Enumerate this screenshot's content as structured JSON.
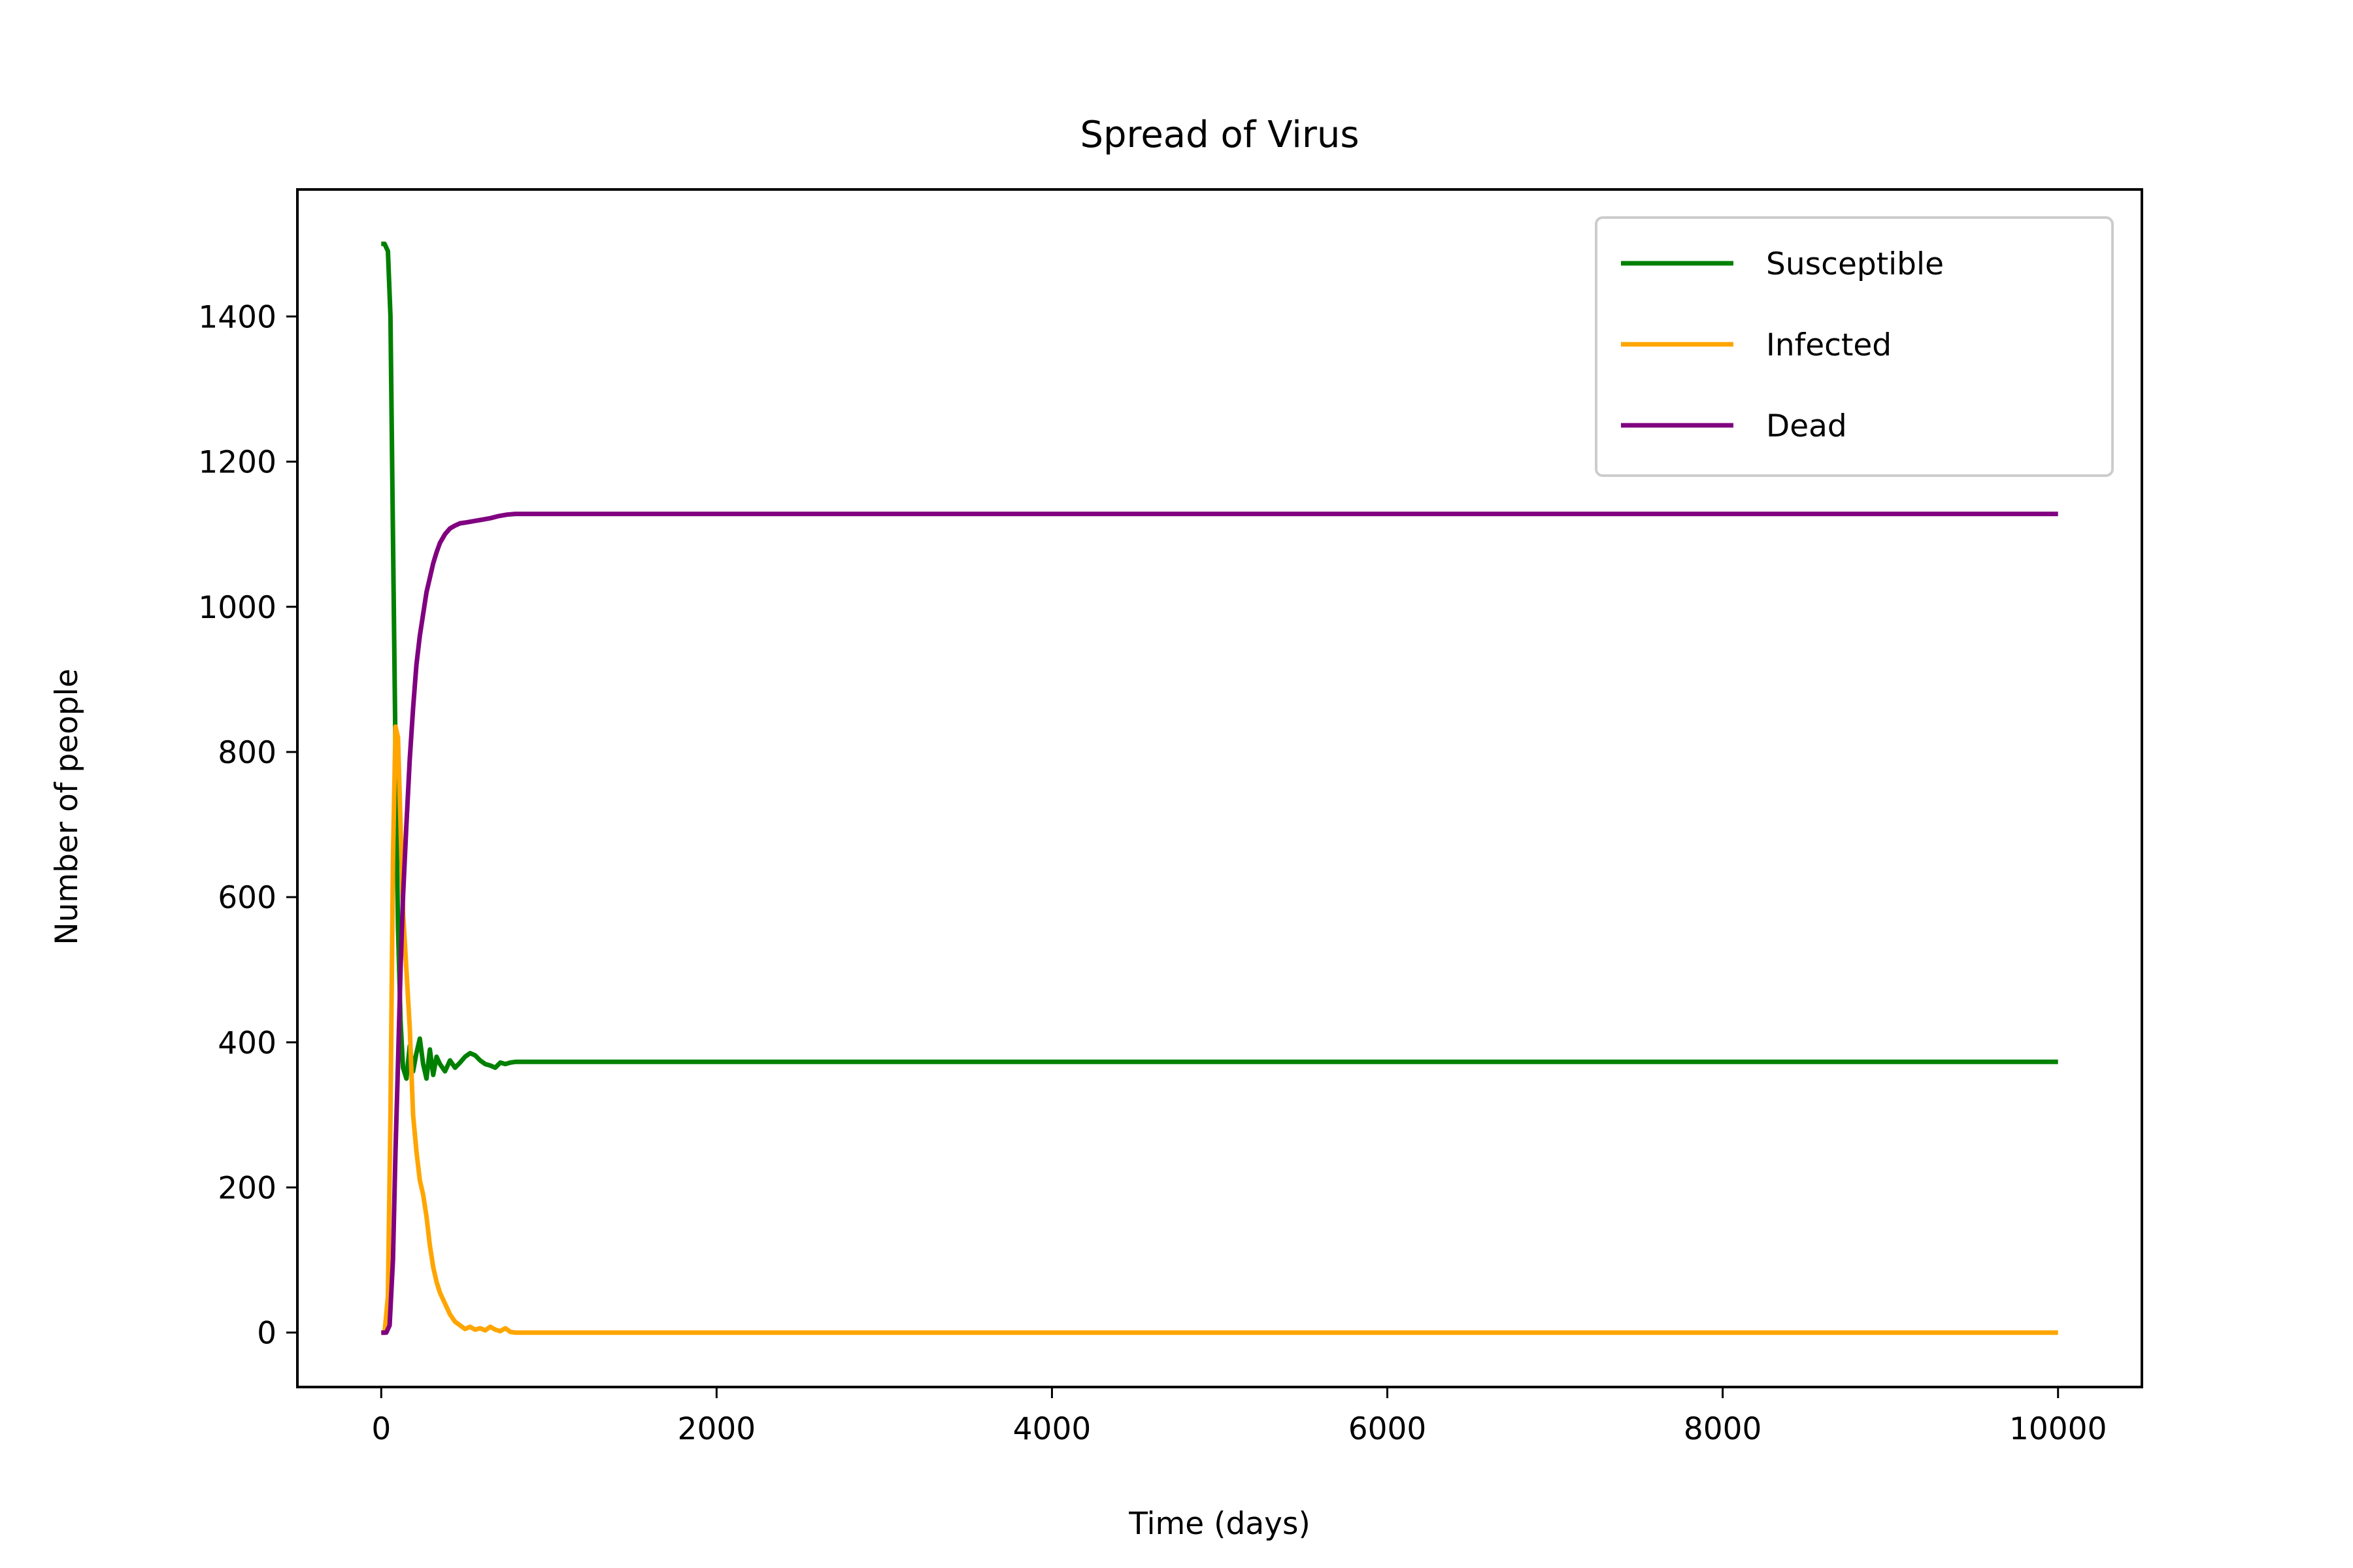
{
  "chart_data": {
    "type": "line",
    "title": "Spread of Virus",
    "xlabel": "Time (days)",
    "ylabel": "Number of people",
    "xlim": [
      -500,
      10500
    ],
    "ylim": [
      -75,
      1575
    ],
    "xticks": [
      0,
      2000,
      4000,
      6000,
      8000,
      10000
    ],
    "yticks": [
      0,
      200,
      400,
      600,
      800,
      1000,
      1200,
      1400
    ],
    "grid": false,
    "legend": "top-right",
    "series": [
      {
        "name": "Susceptible",
        "color": "#008000",
        "x": [
          0,
          20,
          40,
          55,
          70,
          85,
          100,
          115,
          130,
          150,
          170,
          190,
          210,
          230,
          250,
          270,
          290,
          310,
          330,
          350,
          380,
          410,
          440,
          470,
          500,
          530,
          560,
          590,
          620,
          650,
          680,
          710,
          740,
          770,
          800,
          1000,
          2000,
          4000,
          6000,
          8000,
          10000
        ],
        "y": [
          1500,
          1500,
          1490,
          1400,
          1100,
          800,
          560,
          430,
          365,
          350,
          395,
          360,
          385,
          405,
          370,
          350,
          390,
          355,
          380,
          370,
          360,
          375,
          365,
          372,
          380,
          385,
          382,
          375,
          370,
          368,
          365,
          372,
          370,
          372,
          373,
          373,
          373,
          373,
          373,
          373,
          373
        ]
      },
      {
        "name": "Infected",
        "color": "#FFA500",
        "x": [
          0,
          20,
          40,
          55,
          70,
          85,
          100,
          115,
          130,
          150,
          170,
          190,
          210,
          230,
          250,
          270,
          290,
          310,
          330,
          350,
          380,
          410,
          440,
          470,
          500,
          530,
          560,
          590,
          620,
          650,
          680,
          710,
          740,
          770,
          800,
          1000,
          2000,
          4000,
          6000,
          8000,
          10000
        ],
        "y": [
          0,
          0,
          50,
          300,
          650,
          835,
          820,
          700,
          580,
          500,
          420,
          300,
          250,
          210,
          190,
          160,
          120,
          90,
          70,
          55,
          40,
          25,
          15,
          10,
          5,
          8,
          4,
          6,
          3,
          8,
          4,
          2,
          6,
          1,
          0,
          0,
          0,
          0,
          0,
          0,
          0
        ]
      },
      {
        "name": "Dead",
        "color": "#800080",
        "x": [
          0,
          30,
          50,
          70,
          85,
          100,
          115,
          130,
          150,
          170,
          190,
          210,
          230,
          250,
          270,
          290,
          310,
          330,
          350,
          380,
          410,
          440,
          470,
          500,
          550,
          600,
          650,
          700,
          750,
          800,
          1000,
          2000,
          4000,
          6000,
          8000,
          10000
        ],
        "y": [
          0,
          0,
          10,
          100,
          250,
          370,
          500,
          600,
          700,
          790,
          860,
          920,
          960,
          990,
          1020,
          1040,
          1060,
          1075,
          1088,
          1100,
          1108,
          1112,
          1115,
          1116,
          1118,
          1120,
          1122,
          1125,
          1127,
          1128,
          1128,
          1128,
          1128,
          1128,
          1128,
          1128
        ]
      }
    ]
  }
}
